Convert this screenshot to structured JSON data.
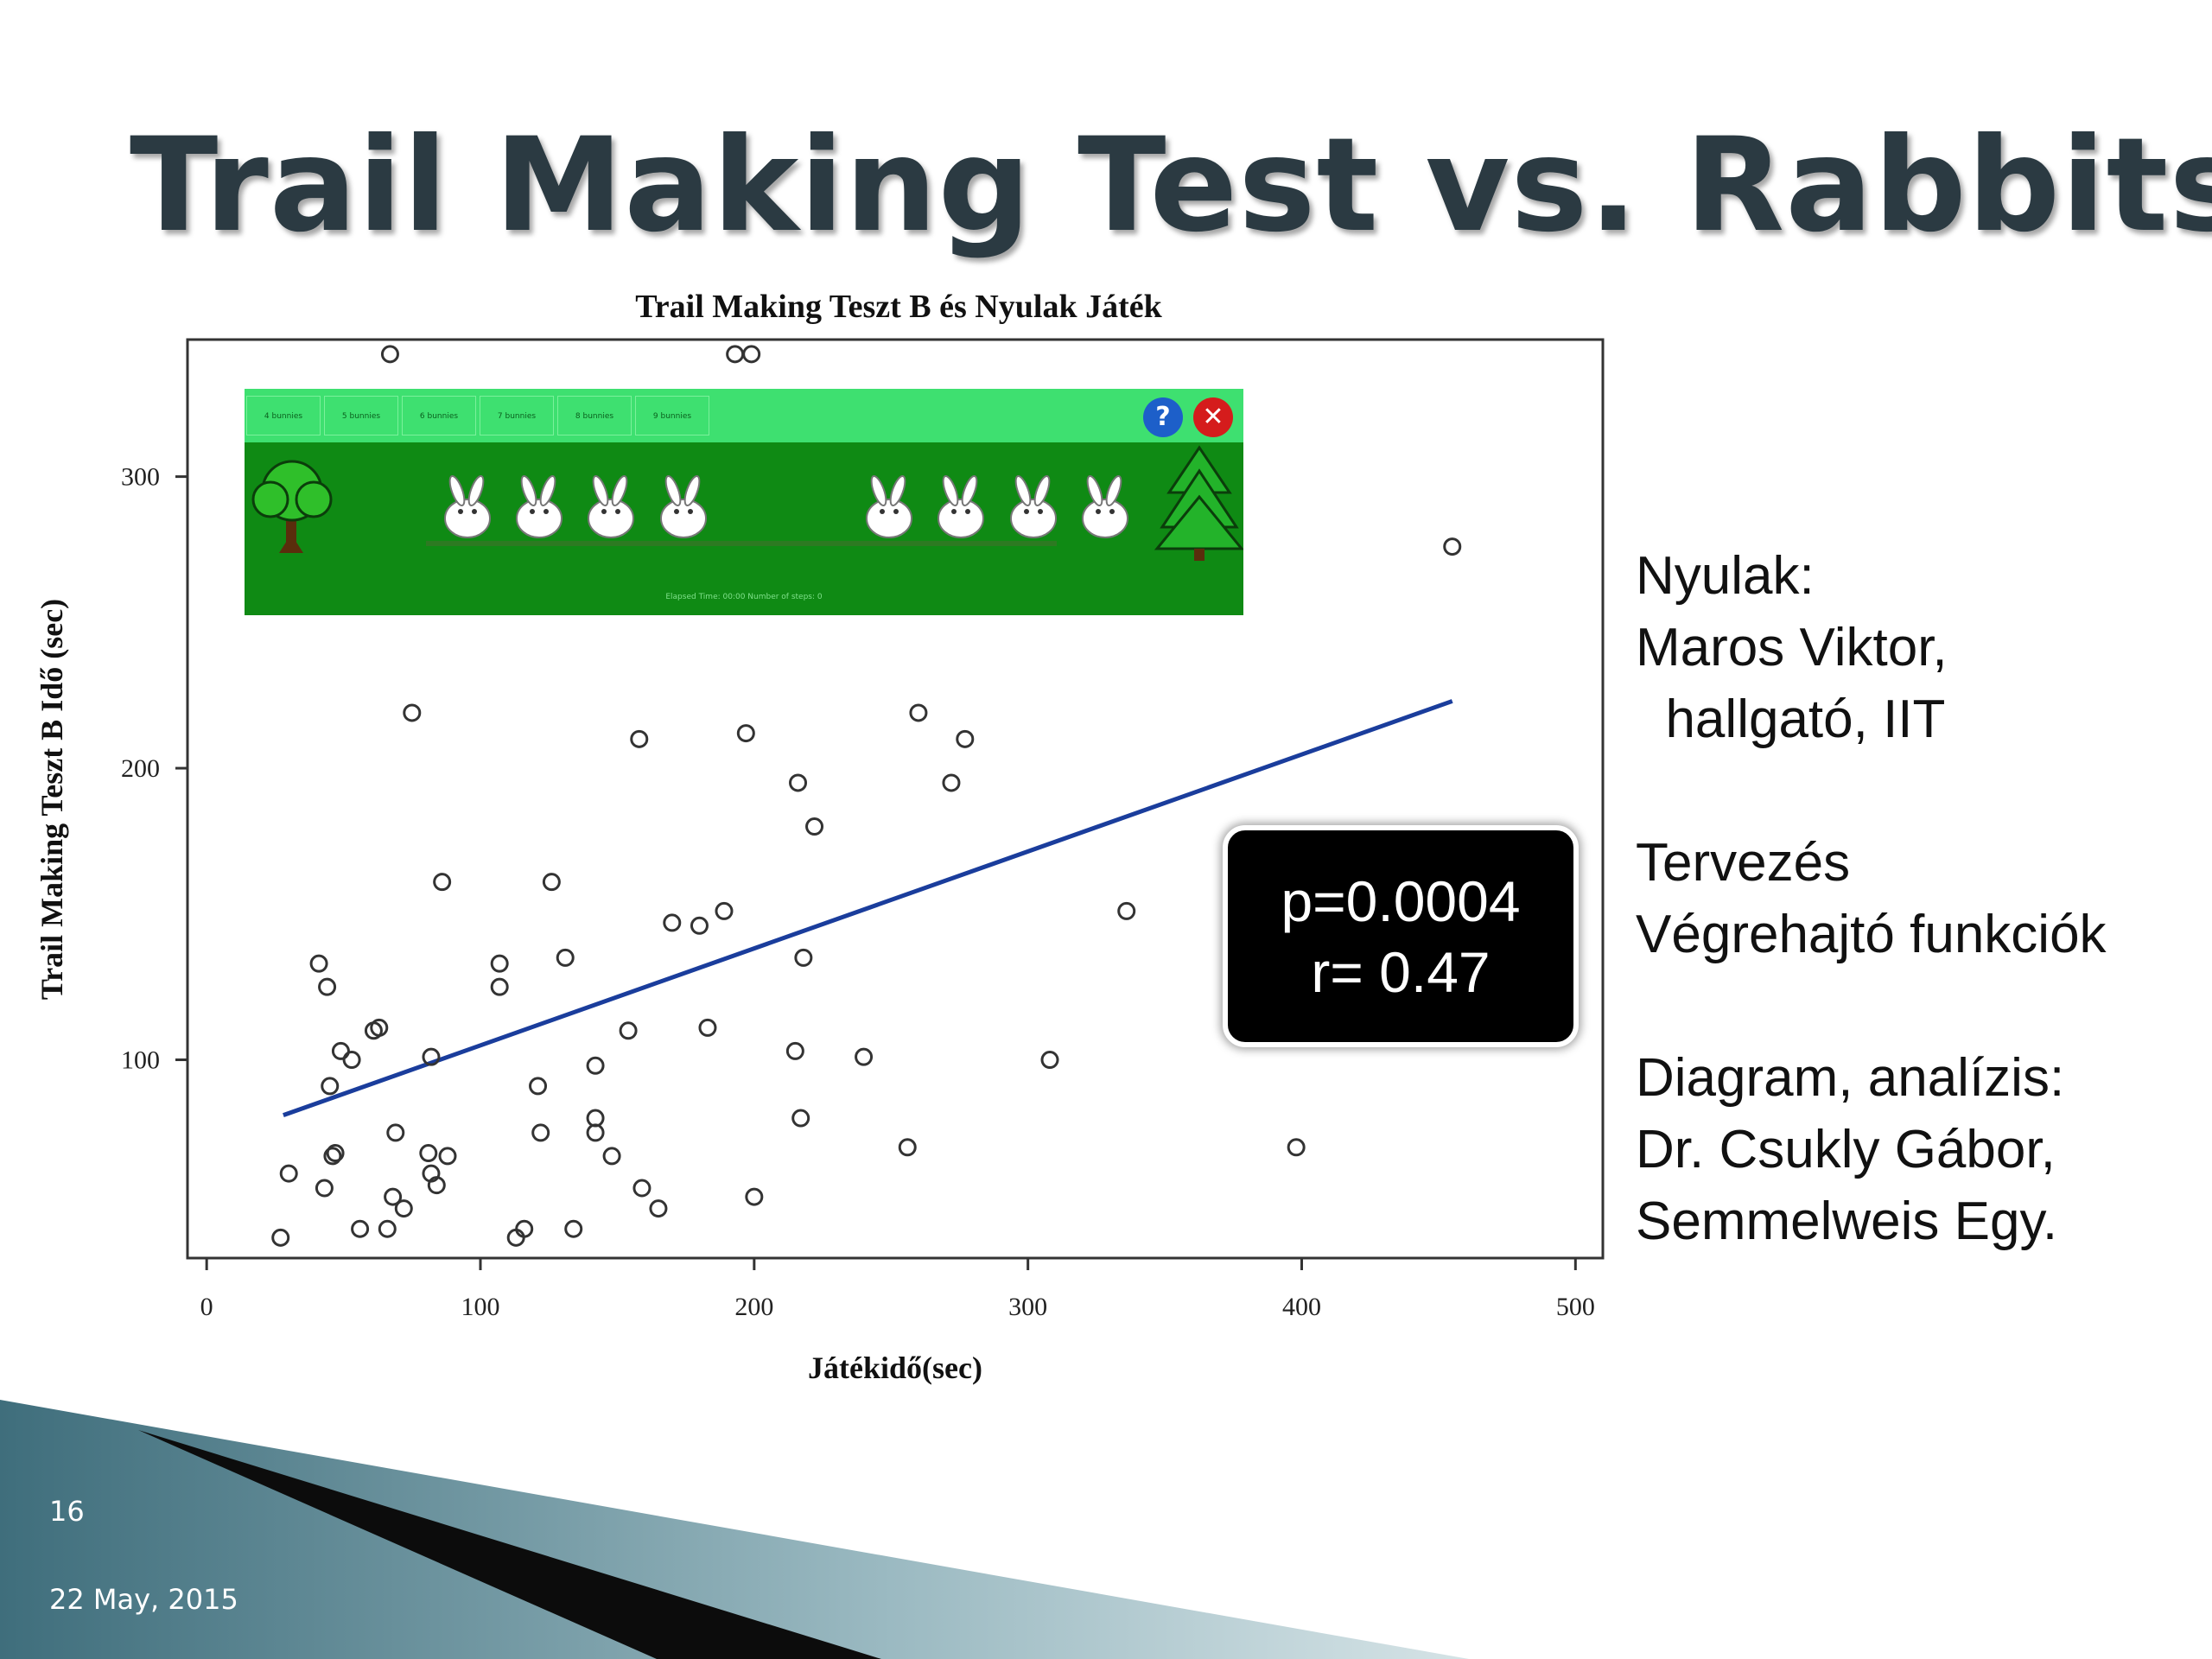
{
  "slide": {
    "title": "Trail Making Test vs. Rabbits",
    "number": "16",
    "date": "22 May, 2015",
    "side_text": [
      "Nyulak:",
      "Maros Viktor,",
      "  hallgató, IIT",
      "",
      "Tervezés",
      "Végrehajtó funkciók",
      "",
      "Diagram, analízis:",
      "Dr. Csukly Gábor,",
      "Semmelweis Egy."
    ],
    "colors": {
      "title": "#2b3a42",
      "trend_line": "#1a3d9c",
      "decor_dark": "#3f6e7c",
      "decor_light": "#9ab9c1"
    }
  },
  "stats": {
    "p_value": "p=0.0004",
    "r_value": "r= 0.47"
  },
  "game_inset": {
    "level_buttons": [
      "4 bunnies",
      "5 bunnies",
      "6 bunnies",
      "7 bunnies",
      "8 bunnies",
      "9 bunnies"
    ],
    "help_icon": "question-icon",
    "close_icon": "close-icon",
    "status_text": "Elapsed Time: 00:00  Number of steps: 0"
  },
  "chart_data": {
    "type": "scatter",
    "title": "Trail Making Teszt B és Nyulak Játék",
    "xlabel": "Játékidő(sec)",
    "ylabel": "Trail Making Teszt B Idő (sec)",
    "xlim": [
      -7,
      510
    ],
    "ylim": [
      32,
      347
    ],
    "xticks": [
      0,
      100,
      200,
      300,
      400,
      500
    ],
    "yticks": [
      100,
      200,
      300
    ],
    "grid": false,
    "legend": "none",
    "trend_line": {
      "x": [
        28,
        455
      ],
      "y": [
        81,
        223
      ]
    },
    "points": [
      {
        "x": 67,
        "y": 342
      },
      {
        "x": 193,
        "y": 342
      },
      {
        "x": 199,
        "y": 342
      },
      {
        "x": 455,
        "y": 276
      },
      {
        "x": 75,
        "y": 219
      },
      {
        "x": 158,
        "y": 210
      },
      {
        "x": 197,
        "y": 212
      },
      {
        "x": 260,
        "y": 219
      },
      {
        "x": 277,
        "y": 210
      },
      {
        "x": 216,
        "y": 195
      },
      {
        "x": 272,
        "y": 195
      },
      {
        "x": 222,
        "y": 180
      },
      {
        "x": 86,
        "y": 161
      },
      {
        "x": 126,
        "y": 161
      },
      {
        "x": 170,
        "y": 147
      },
      {
        "x": 180,
        "y": 146
      },
      {
        "x": 189,
        "y": 151
      },
      {
        "x": 336,
        "y": 151
      },
      {
        "x": 41,
        "y": 133
      },
      {
        "x": 107,
        "y": 133
      },
      {
        "x": 131,
        "y": 135
      },
      {
        "x": 218,
        "y": 135
      },
      {
        "x": 44,
        "y": 125
      },
      {
        "x": 107,
        "y": 125
      },
      {
        "x": 61,
        "y": 110
      },
      {
        "x": 63,
        "y": 111
      },
      {
        "x": 154,
        "y": 110
      },
      {
        "x": 183,
        "y": 111
      },
      {
        "x": 49,
        "y": 103
      },
      {
        "x": 53,
        "y": 100
      },
      {
        "x": 82,
        "y": 101
      },
      {
        "x": 215,
        "y": 103
      },
      {
        "x": 240,
        "y": 101
      },
      {
        "x": 308,
        "y": 100
      },
      {
        "x": 142,
        "y": 98
      },
      {
        "x": 45,
        "y": 91
      },
      {
        "x": 121,
        "y": 91
      },
      {
        "x": 142,
        "y": 80
      },
      {
        "x": 217,
        "y": 80
      },
      {
        "x": 69,
        "y": 75
      },
      {
        "x": 122,
        "y": 75
      },
      {
        "x": 142,
        "y": 75
      },
      {
        "x": 46,
        "y": 67
      },
      {
        "x": 47,
        "y": 68
      },
      {
        "x": 81,
        "y": 68
      },
      {
        "x": 88,
        "y": 67
      },
      {
        "x": 148,
        "y": 67
      },
      {
        "x": 256,
        "y": 70
      },
      {
        "x": 398,
        "y": 70
      },
      {
        "x": 30,
        "y": 61
      },
      {
        "x": 82,
        "y": 61
      },
      {
        "x": 43,
        "y": 56
      },
      {
        "x": 84,
        "y": 57
      },
      {
        "x": 68,
        "y": 53
      },
      {
        "x": 159,
        "y": 56
      },
      {
        "x": 200,
        "y": 53
      },
      {
        "x": 72,
        "y": 49
      },
      {
        "x": 165,
        "y": 49
      },
      {
        "x": 56,
        "y": 42
      },
      {
        "x": 66,
        "y": 42
      },
      {
        "x": 116,
        "y": 42
      },
      {
        "x": 134,
        "y": 42
      },
      {
        "x": 27,
        "y": 39
      },
      {
        "x": 113,
        "y": 39
      }
    ]
  }
}
